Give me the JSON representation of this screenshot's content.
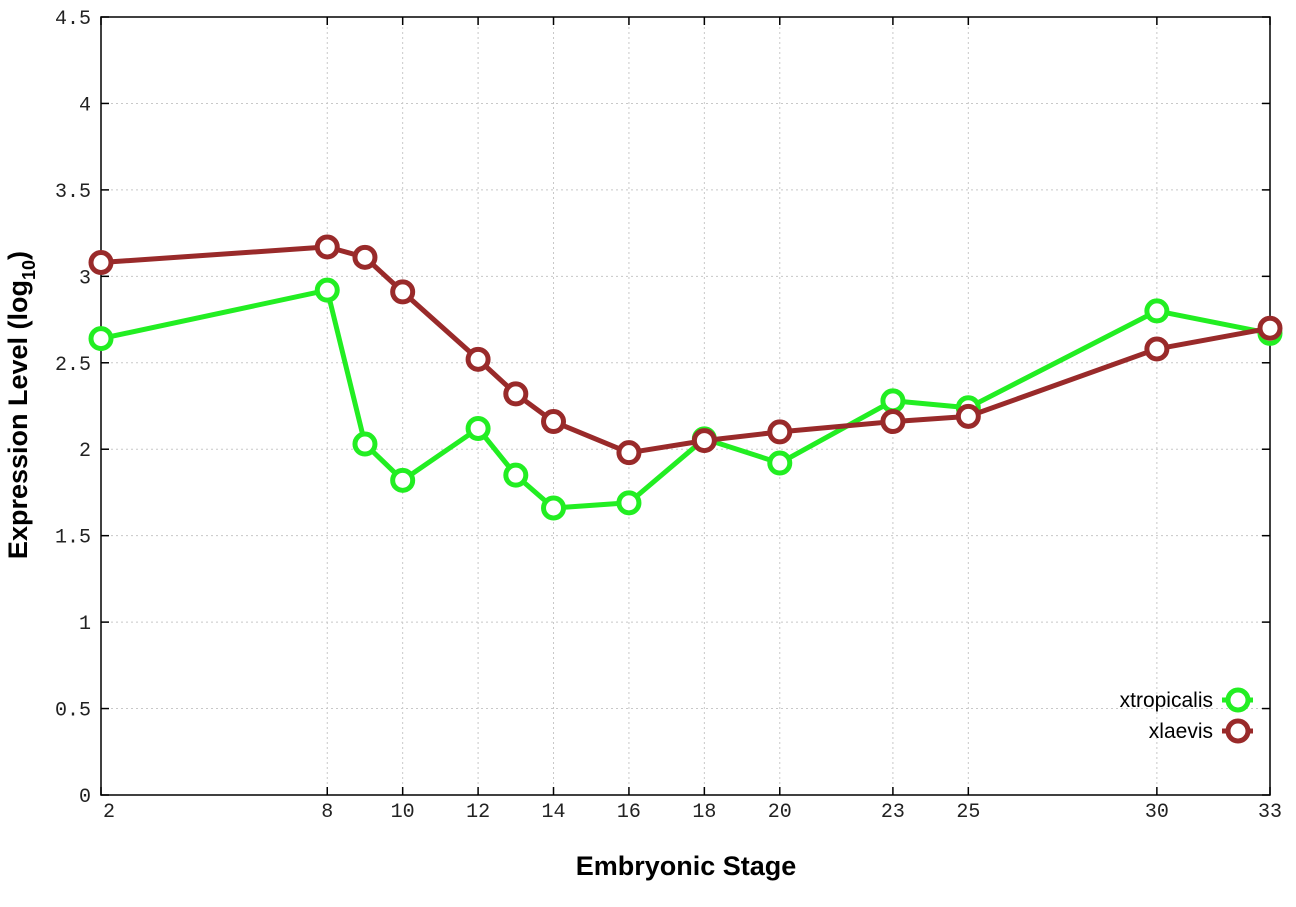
{
  "chart_data": {
    "type": "line",
    "xlabel": "Embryonic Stage",
    "ylabel": "Expression Level (log",
    "ylabel_subscript": "10",
    "ylabel_suffix": ")",
    "x_ticks": [
      "2",
      "8",
      "10",
      "12",
      "14",
      "16",
      "18",
      "20",
      "23",
      "25",
      "30",
      "33"
    ],
    "x_tick_values": [
      2,
      8,
      10,
      12,
      14,
      16,
      18,
      20,
      23,
      25,
      30,
      33
    ],
    "y_ticks": [
      "0",
      "0.5",
      "1",
      "1.5",
      "2",
      "2.5",
      "3",
      "3.5",
      "4",
      "4.5"
    ],
    "y_tick_values": [
      0,
      0.5,
      1,
      1.5,
      2,
      2.5,
      3,
      3.5,
      4,
      4.5
    ],
    "xlim": [
      2,
      33
    ],
    "ylim": [
      0,
      4.5
    ],
    "grid": true,
    "legend_position": "bottom-right",
    "series": [
      {
        "name": "xtropicalis",
        "color": "#22ee22",
        "x": [
          2,
          8,
          9,
          10,
          12,
          13,
          14,
          16,
          18,
          20,
          23,
          25,
          30,
          33
        ],
        "values": [
          2.64,
          2.92,
          2.03,
          1.82,
          2.12,
          1.85,
          1.66,
          1.69,
          2.06,
          1.92,
          2.28,
          2.24,
          2.8,
          2.67
        ]
      },
      {
        "name": "xlaevis",
        "color": "#992a2a",
        "x": [
          2,
          8,
          9,
          10,
          12,
          13,
          14,
          16,
          18,
          20,
          23,
          25,
          30,
          33
        ],
        "values": [
          3.08,
          3.17,
          3.11,
          2.91,
          2.52,
          2.32,
          2.16,
          1.98,
          2.05,
          2.1,
          2.16,
          2.19,
          2.58,
          2.7
        ]
      }
    ]
  }
}
